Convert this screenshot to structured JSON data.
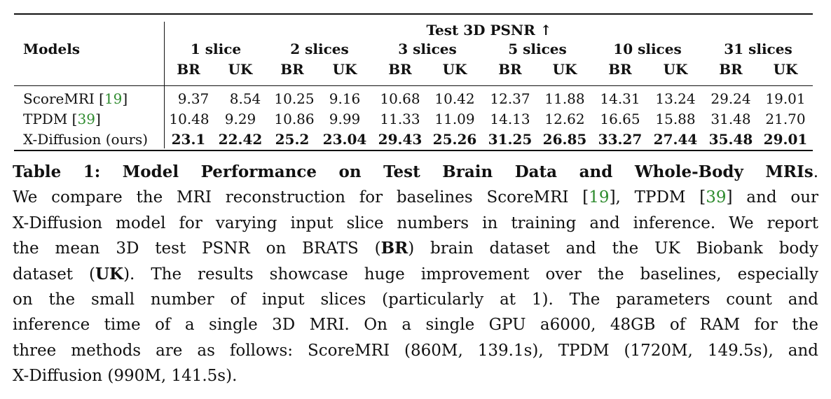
{
  "table": {
    "metric_header": "Test 3D PSNR ↑",
    "models_header": "Models",
    "slice_headers": [
      "1 slice",
      "2 slices",
      "3 slices",
      "5 slices",
      "10 slices",
      "31 slices"
    ],
    "subcol_br": "BR",
    "subcol_uk": "UK",
    "rows": [
      {
        "model": "ScoreMRI",
        "cite": "19",
        "values": [
          "9.37",
          "8.54",
          "10.25",
          "9.16",
          "10.68",
          "10.42",
          "12.37",
          "11.88",
          "14.31",
          "13.24",
          "29.24",
          "19.01"
        ],
        "bold": false
      },
      {
        "model": "TPDM",
        "cite": "39",
        "values": [
          "10.48",
          "9.29",
          "10.86",
          "9.99",
          "11.33",
          "11.09",
          "14.13",
          "12.62",
          "16.65",
          "15.88",
          "31.48",
          "21.70"
        ],
        "bold": false
      },
      {
        "model": "X-Diffusion (ours)",
        "cite": "",
        "values": [
          "23.1",
          "22.42",
          "25.2",
          "23.04",
          "29.43",
          "25.26",
          "31.25",
          "26.85",
          "33.27",
          "27.44",
          "35.48",
          "29.01"
        ],
        "bold": true
      }
    ]
  },
  "caption": {
    "title": "Table 1: Model Performance on Test Brain Data and Whole-Body MRIs",
    "line1_end": ".",
    "l2_a": "We compare the MRI reconstruction for baselines ScoreMRI [",
    "cite_a": "19",
    "l2_b": "], TPDM [",
    "cite_b": "39",
    "l2_c": "] and our",
    "l3": "X-Diffusion model for varying input slice numbers in training and inference. We report",
    "l4_a": "the mean 3D test PSNR on BRATS (",
    "l4_br": "BR",
    "l4_b": ") brain dataset and the UK Biobank body",
    "l5_a": "dataset (",
    "l5_uk": "UK",
    "l5_b": "). The results showcase huge improvement over the baselines, especially",
    "l6": "on the small number of input slices (particularly at 1). The parameters count and",
    "l7": "inference time of a single 3D MRI. On a single GPU a6000, 48GB of RAM for the",
    "l8": "three methods are as follows: ScoreMRI (860M, 139.1s), TPDM (1720M, 149.5s), and",
    "l9": "X-Diffusion (990M, 141.5s)."
  }
}
